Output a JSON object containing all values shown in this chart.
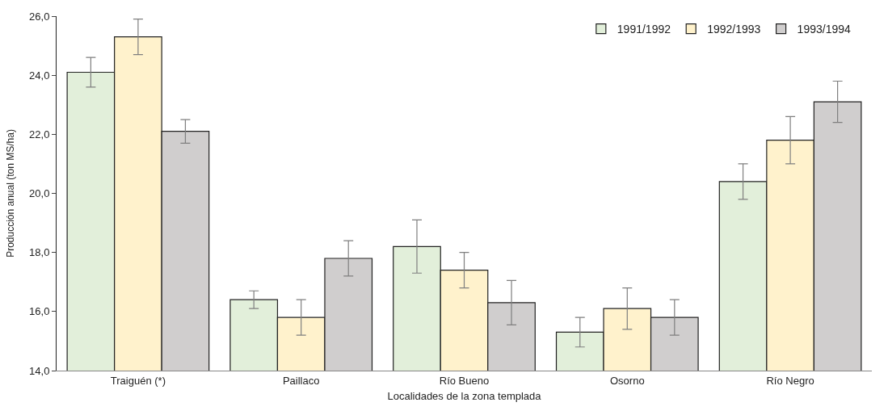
{
  "chart_data": {
    "type": "bar",
    "xlabel": "Localidades de la zona templada",
    "ylabel": "Producción anual (ton MS/ha)",
    "categories": [
      "Traiguén (*)",
      "Paillaco",
      "Río Bueno",
      "Osorno",
      "Río Negro"
    ],
    "series": [
      {
        "name": "1991/1992",
        "color": "#e2efda",
        "values": [
          24.1,
          16.4,
          18.2,
          15.3,
          20.4
        ],
        "errors": [
          0.5,
          0.3,
          0.9,
          0.5,
          0.6
        ]
      },
      {
        "name": "1992/1993",
        "color": "#fff2cc",
        "values": [
          25.3,
          15.8,
          17.4,
          16.1,
          21.8
        ],
        "errors": [
          0.6,
          0.6,
          0.6,
          0.7,
          0.8
        ]
      },
      {
        "name": "1993/1994",
        "color": "#d0cece",
        "values": [
          22.1,
          17.8,
          16.3,
          15.8,
          23.1
        ],
        "errors": [
          0.4,
          0.6,
          0.75,
          0.6,
          0.7
        ]
      }
    ],
    "ylim": [
      14,
      26
    ],
    "yticks": [
      {
        "value": 14,
        "label": "14,0"
      },
      {
        "value": 16,
        "label": "16,0"
      },
      {
        "value": 18,
        "label": "18,0"
      },
      {
        "value": 20,
        "label": "20,0"
      },
      {
        "value": 22,
        "label": "22,0"
      },
      {
        "value": 24,
        "label": "24,0"
      },
      {
        "value": 26,
        "label": "26,0"
      }
    ],
    "legend": "top right",
    "grid": false
  }
}
